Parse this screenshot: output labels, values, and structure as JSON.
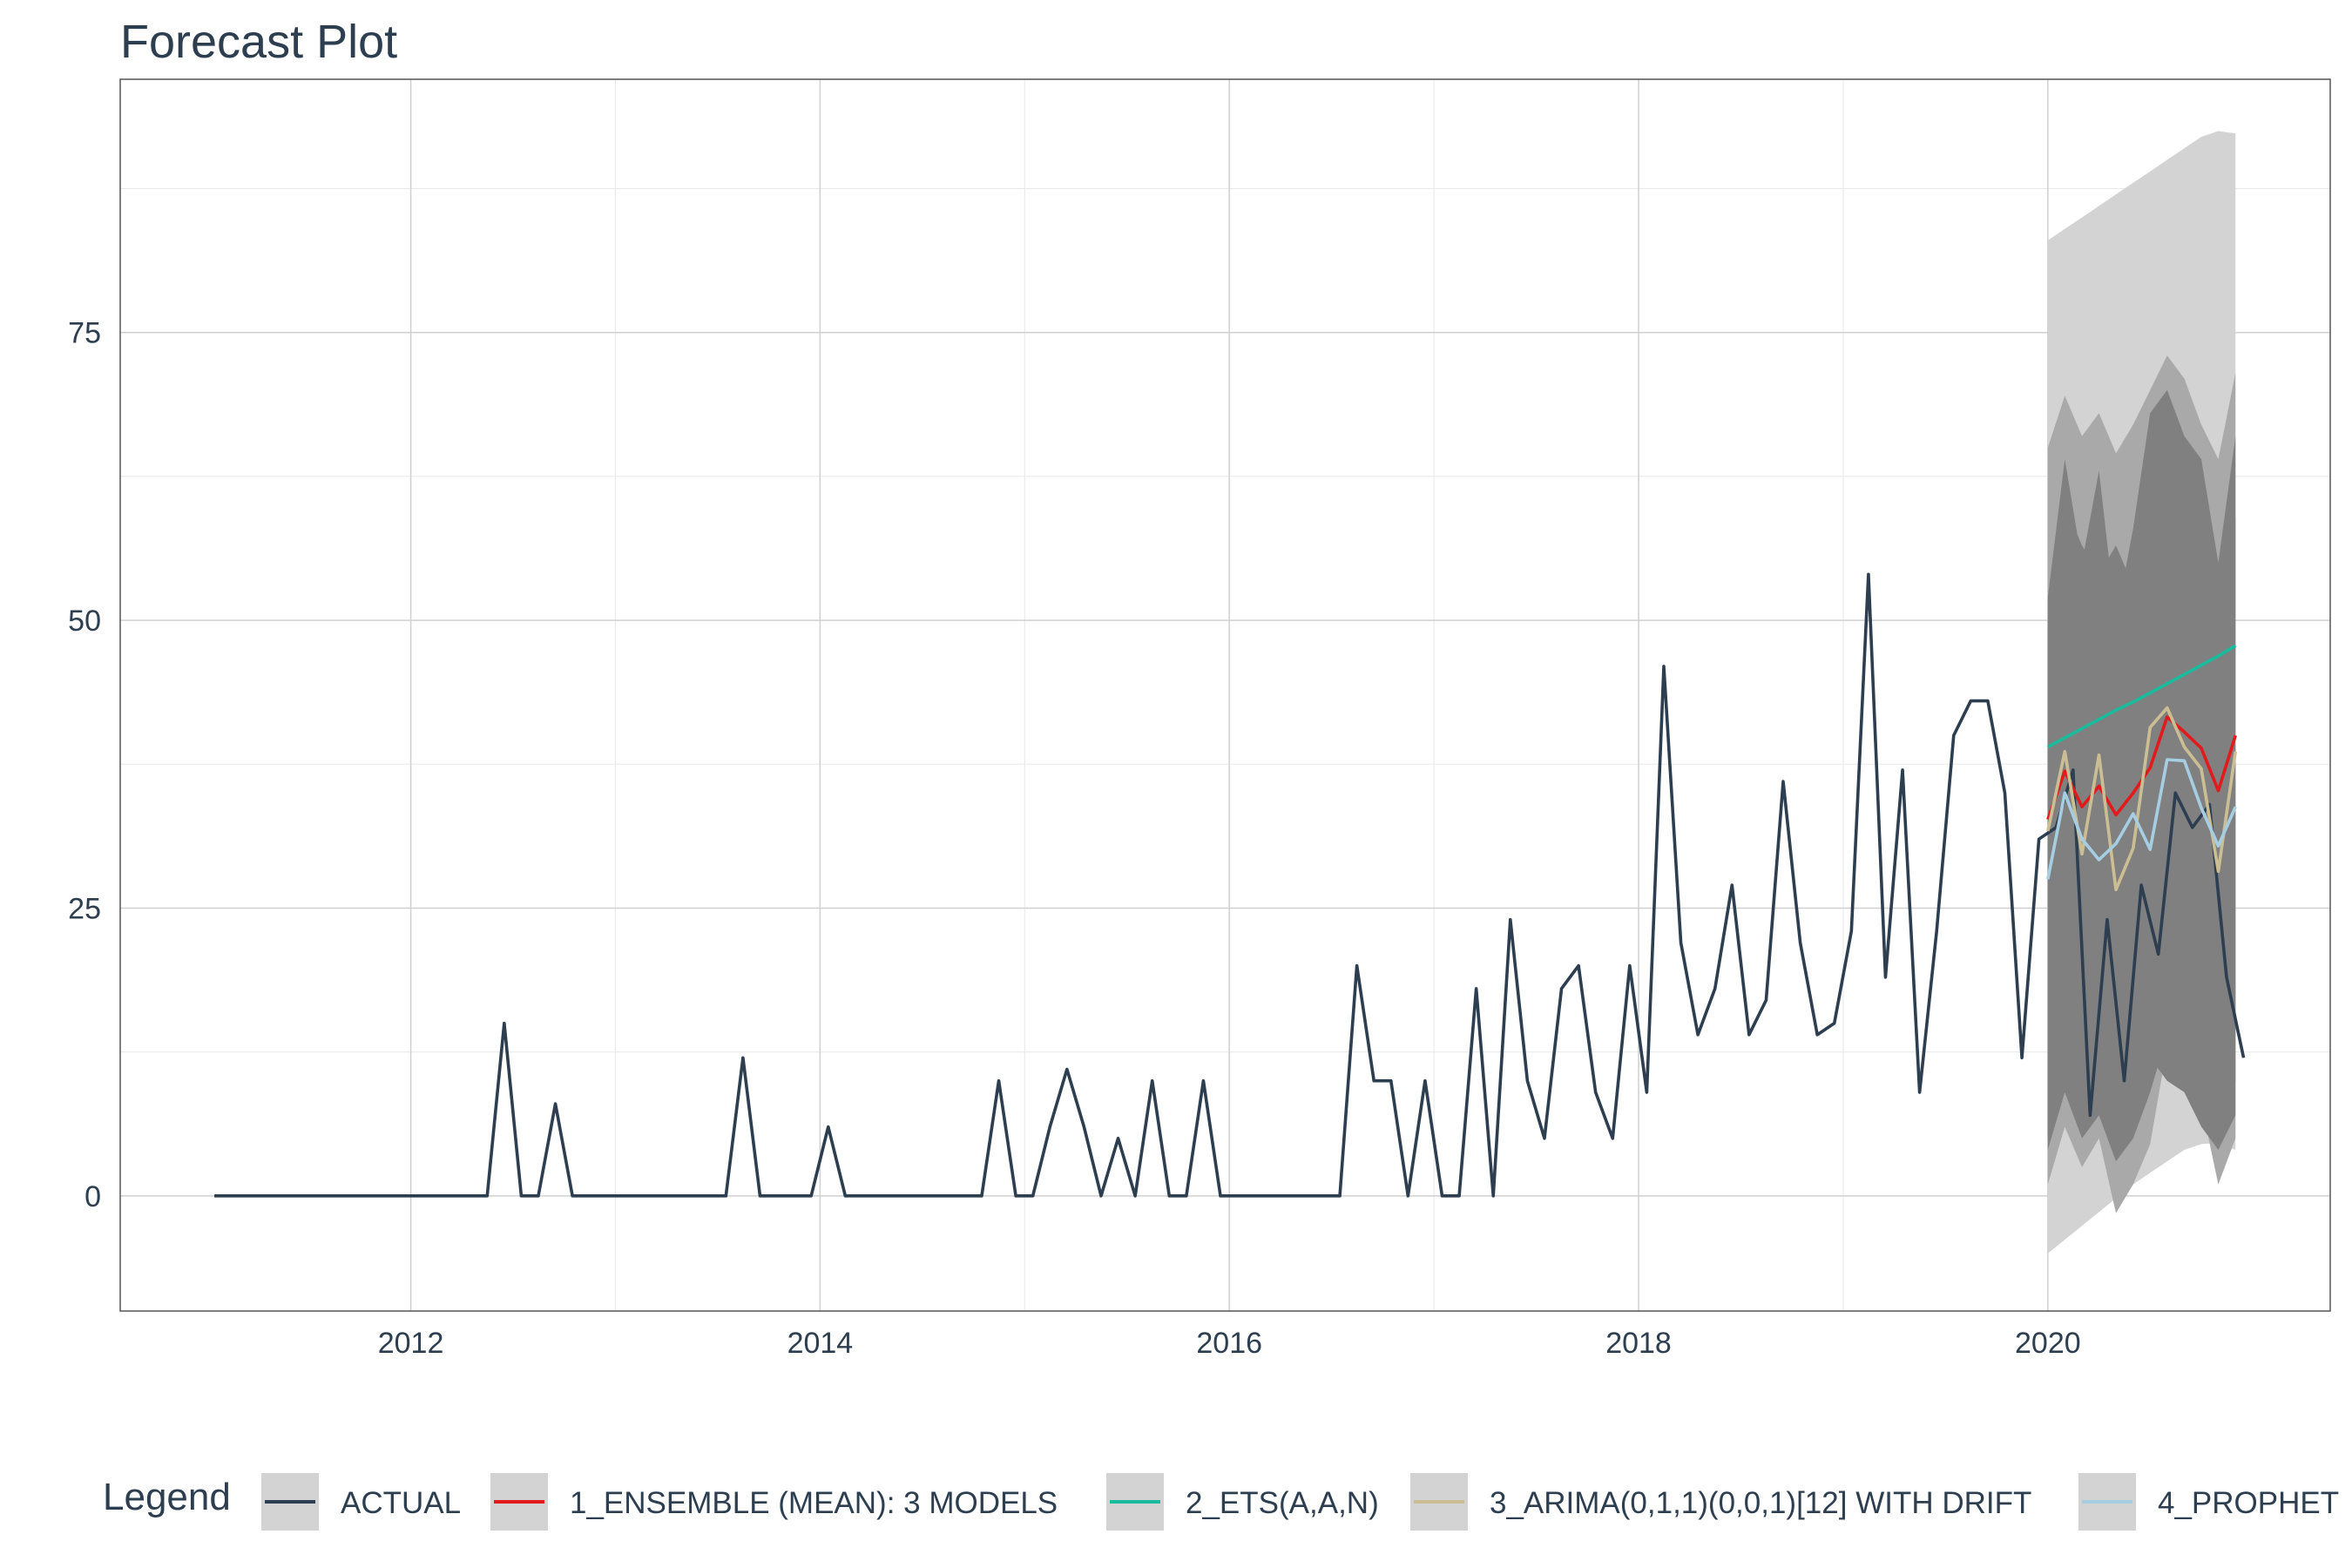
{
  "chart_data": {
    "type": "line",
    "title": "Forecast Plot",
    "xlabel": "",
    "ylabel": "",
    "xlim": [
      2010.58,
      2021.38
    ],
    "ylim": [
      -10,
      97
    ],
    "grid": true,
    "x_ticks": [
      2012,
      2014,
      2016,
      2018,
      2020
    ],
    "x_tick_labels": [
      "2012",
      "2014",
      "2016",
      "2018",
      "2020"
    ],
    "y_ticks": [
      0,
      25,
      50,
      75
    ],
    "y_tick_labels": [
      "0",
      "25",
      "50",
      "75"
    ],
    "legend": {
      "title": "Legend",
      "position": "bottom",
      "entries": [
        {
          "label": "ACTUAL",
          "color": "#2c3e50"
        },
        {
          "label": "1_ENSEMBLE (MEAN): 3 MODELS",
          "color": "#e31a1c"
        },
        {
          "label": "2_ETS(A,A,N)",
          "color": "#18bc9c"
        },
        {
          "label": "3_ARIMA(0,1,1)(0,0,1)[12] WITH DRIFT",
          "color": "#ccbe93"
        },
        {
          "label": "4_PROPHET",
          "color": "#a6cee3"
        }
      ]
    },
    "actual": {
      "name": "ACTUAL",
      "color": "#2c3e50",
      "start": 2011.04,
      "step": 0.0833333,
      "values": [
        0,
        0,
        0,
        0,
        0,
        0,
        0,
        0,
        0,
        0,
        0,
        0,
        0,
        0,
        0,
        0,
        0,
        15,
        0,
        0,
        8,
        0,
        0,
        0,
        0,
        0,
        0,
        0,
        0,
        0,
        0,
        12,
        0,
        0,
        0,
        0,
        6,
        0,
        0,
        0,
        0,
        0,
        0,
        0,
        0,
        0,
        10,
        0,
        0,
        6,
        11,
        6,
        0,
        5,
        0,
        10,
        0,
        0,
        10,
        0,
        0,
        0,
        0,
        0,
        0,
        0,
        0,
        20,
        10,
        10,
        0,
        10,
        0,
        0,
        18,
        0,
        24,
        10,
        5,
        18,
        20,
        9,
        5,
        20,
        9,
        46,
        22,
        14,
        18,
        27,
        14,
        17,
        36,
        22,
        14,
        15,
        23,
        54,
        19,
        37,
        9,
        23,
        40,
        43,
        43,
        35,
        12,
        31,
        32,
        37,
        7,
        24,
        10,
        27,
        21,
        35,
        32,
        34,
        19,
        12
      ]
    },
    "forecast_x": [
      2020.0,
      2020.083,
      2020.167,
      2020.25,
      2020.333,
      2020.417,
      2020.5,
      2020.583,
      2020.667,
      2020.75,
      2020.833,
      2020.917
    ],
    "forecasts": [
      {
        "name": "1_ENSEMBLE (MEAN): 3 MODELS",
        "color": "#e31a1c",
        "values": [
          32.7,
          36.9,
          33.8,
          35.6,
          33.1,
          35.0,
          37.2,
          41.6,
          40.3,
          38.9,
          35.2,
          40.0
        ]
      },
      {
        "name": "2_ETS(A,A,N)",
        "color": "#18bc9c",
        "values": [
          39.0,
          39.8,
          40.6,
          41.4,
          42.2,
          42.9,
          43.7,
          44.5,
          45.3,
          46.1,
          46.9,
          47.8
        ]
      },
      {
        "name": "3_ARIMA(0,1,1)(0,0,1)[12] WITH DRIFT",
        "color": "#ccbe93",
        "values": [
          31.7,
          38.6,
          29.7,
          38.3,
          26.6,
          30.2,
          40.7,
          42.4,
          39.0,
          37.1,
          28.2,
          38.6
        ]
      },
      {
        "name": "4_PROPHET",
        "color": "#a6cee3",
        "values": [
          27.5,
          35.0,
          31.0,
          29.2,
          30.6,
          33.2,
          30.1,
          37.9,
          37.8,
          33.7,
          30.4,
          33.8
        ]
      }
    ],
    "prediction_intervals": [
      {
        "color": "#d3d3d3",
        "upper": [
          83.0,
          84.0,
          85.0,
          86.0,
          87.0,
          88.0,
          89.0,
          90.0,
          91.0,
          92.0,
          92.5,
          92.3
        ],
        "lower": [
          -5.0,
          -3.8,
          -2.6,
          -1.4,
          -0.2,
          1.0,
          2.0,
          3.0,
          4.0,
          4.5,
          4.6,
          4.0
        ]
      },
      {
        "color": "#a9a9a9",
        "upper": [
          65.0,
          69.5,
          66.0,
          68.0,
          64.5,
          67.0,
          70.0,
          73.0,
          71.0,
          67.0,
          64.0,
          71.5
        ],
        "lower": [
          1.0,
          6.0,
          2.5,
          5.0,
          -1.5,
          1.0,
          4.5,
          13.0,
          10.0,
          8.0,
          1.0,
          5.0
        ]
      },
      {
        "color": "#808080",
        "upper": [
          52.0,
          64.0,
          55.0,
          63.0,
          50.0,
          58.0,
          68.0,
          70.0,
          66.0,
          64.0,
          55.0,
          66.0
        ],
        "lower": [
          4.0,
          9.0,
          5.0,
          7.0,
          3.0,
          5.0,
          9.0,
          14.0,
          13.0,
          11.0,
          4.0,
          7.0
        ]
      },
      {
        "color": "#808080",
        "upper": [
          50.0,
          60.0,
          56.5,
          54.0,
          56.5,
          53.0,
          56.0,
          63.0,
          63.0,
          57.0,
          55.0,
          59.0
        ],
        "lower": [
          5.0,
          10.0,
          6.0,
          9.0,
          4.0,
          8.0,
          12.0,
          10.0,
          9.0,
          6.0,
          4.0,
          10.0
        ]
      }
    ]
  }
}
